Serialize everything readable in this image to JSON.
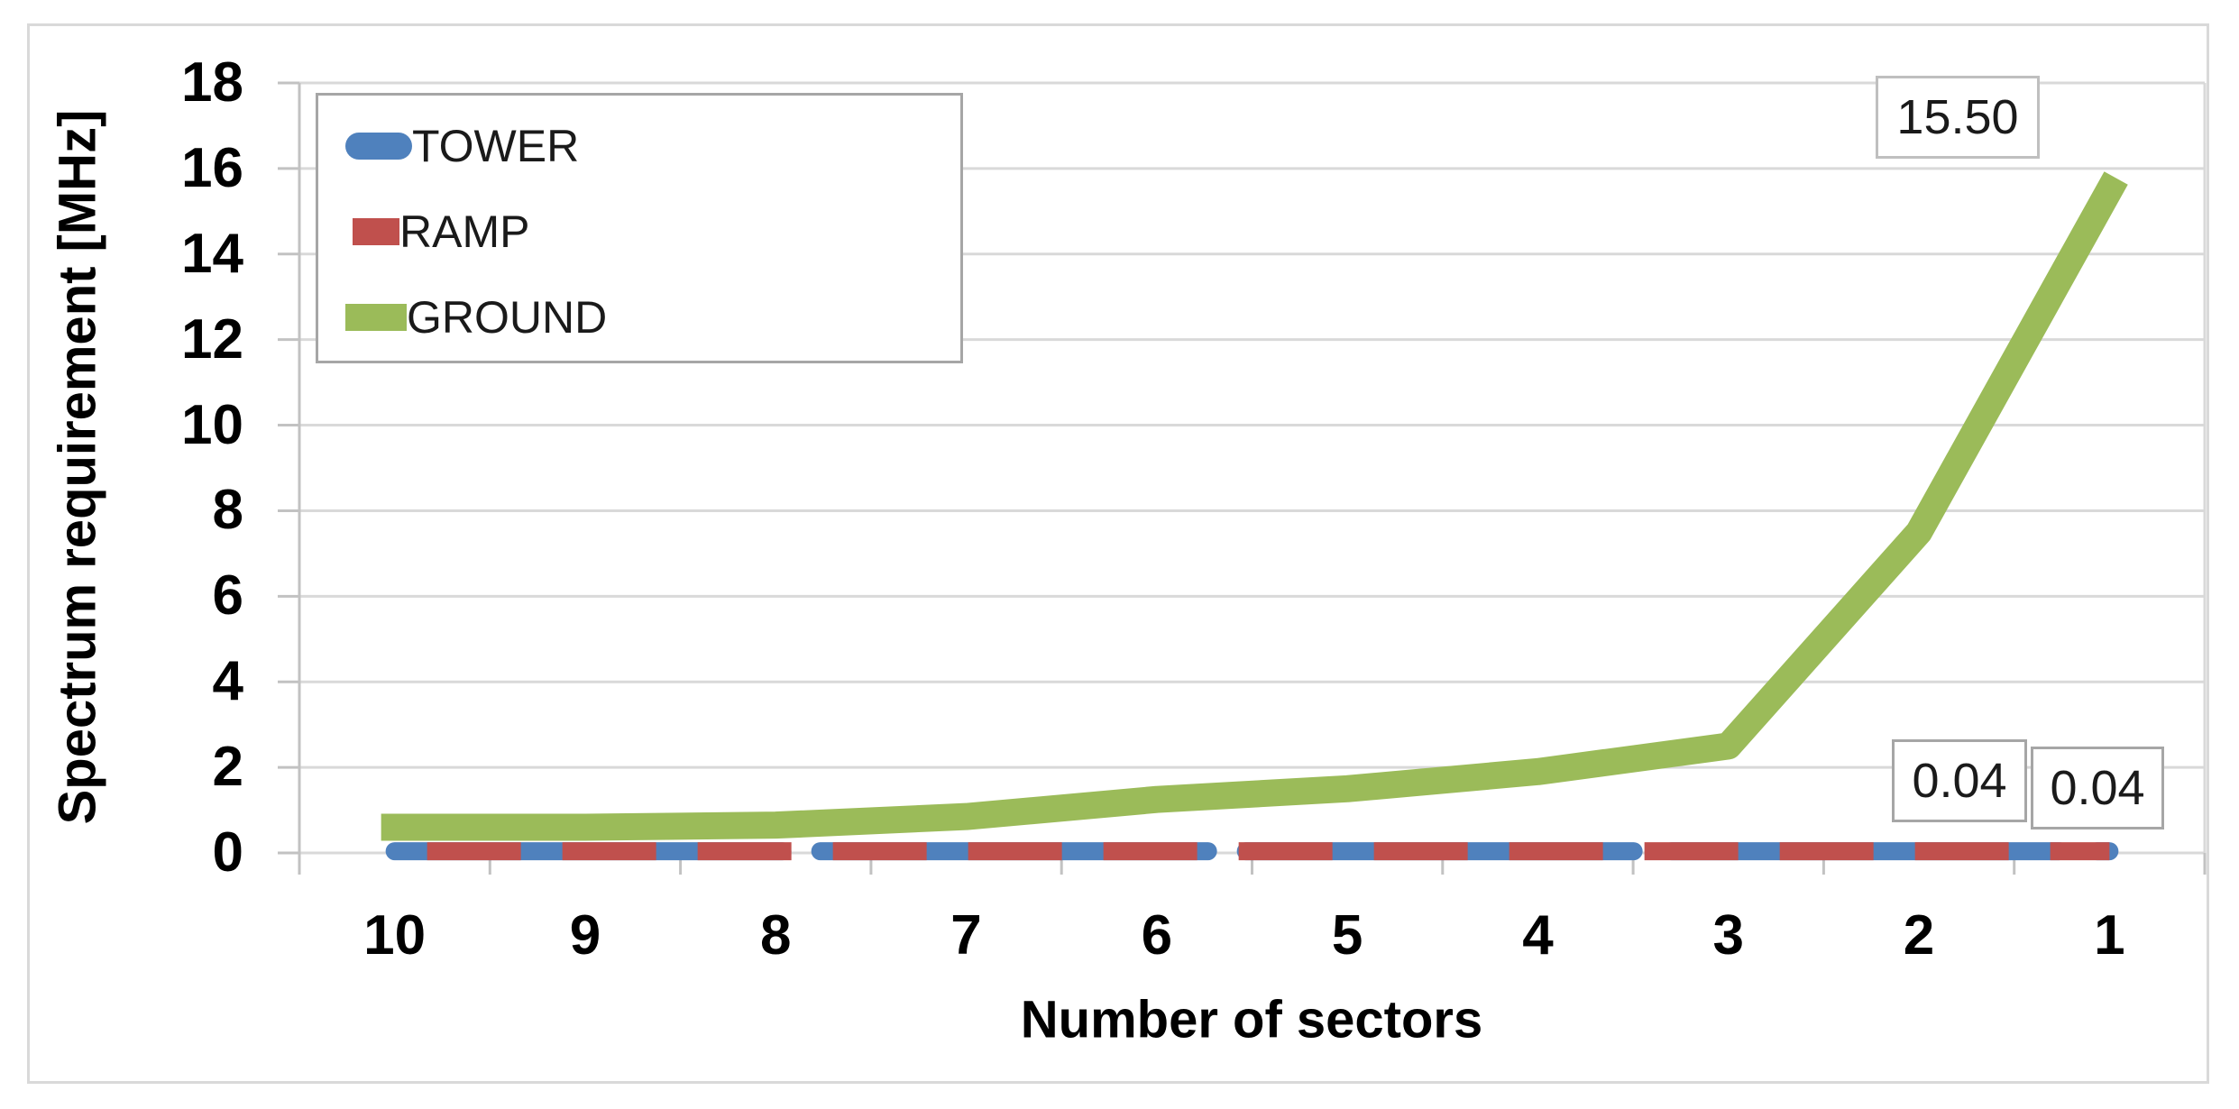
{
  "figure": {
    "background": "#ffffff",
    "border_color": "#d9d9d9"
  },
  "chart_data": {
    "type": "line",
    "title": "",
    "xlabel": "Number of sectors",
    "ylabel": "Spectrum requirement [MHz]",
    "categories": [
      "10",
      "9",
      "8",
      "7",
      "6",
      "5",
      "4",
      "3",
      "2",
      "1"
    ],
    "ylim": [
      0,
      18
    ],
    "yticks": [
      18,
      16,
      14,
      12,
      10,
      8,
      6,
      4,
      2,
      0
    ],
    "grid": "horizontal",
    "gridline_color": "#d9d9d9",
    "axis_line_color": "#c2c2c2",
    "legend_position": "top-left",
    "series": [
      {
        "name": "TOWER",
        "color": "#4F81BD",
        "line_style": "thick-dashed",
        "values": [
          0.04,
          0.04,
          0.04,
          0.04,
          0.04,
          0.04,
          0.04,
          0.04,
          0.04,
          0.04
        ]
      },
      {
        "name": "RAMP",
        "color": "#C0504D",
        "line_style": "thick-dashed",
        "values": [
          0.04,
          0.04,
          0.04,
          0.04,
          0.04,
          0.04,
          0.04,
          0.04,
          0.04,
          0.04
        ]
      },
      {
        "name": "GROUND",
        "color": "#9BBB59",
        "line_style": "thick-solid",
        "values": [
          0.6,
          0.6,
          0.65,
          0.85,
          1.25,
          1.5,
          1.9,
          2.5,
          7.5,
          15.5
        ]
      }
    ],
    "data_labels": [
      {
        "text": "15.50",
        "series": "GROUND",
        "category": "1"
      },
      {
        "text": "0.04",
        "series": "TOWER",
        "category": "1"
      },
      {
        "text": "0.04",
        "series": "RAMP",
        "category": "1"
      }
    ]
  }
}
